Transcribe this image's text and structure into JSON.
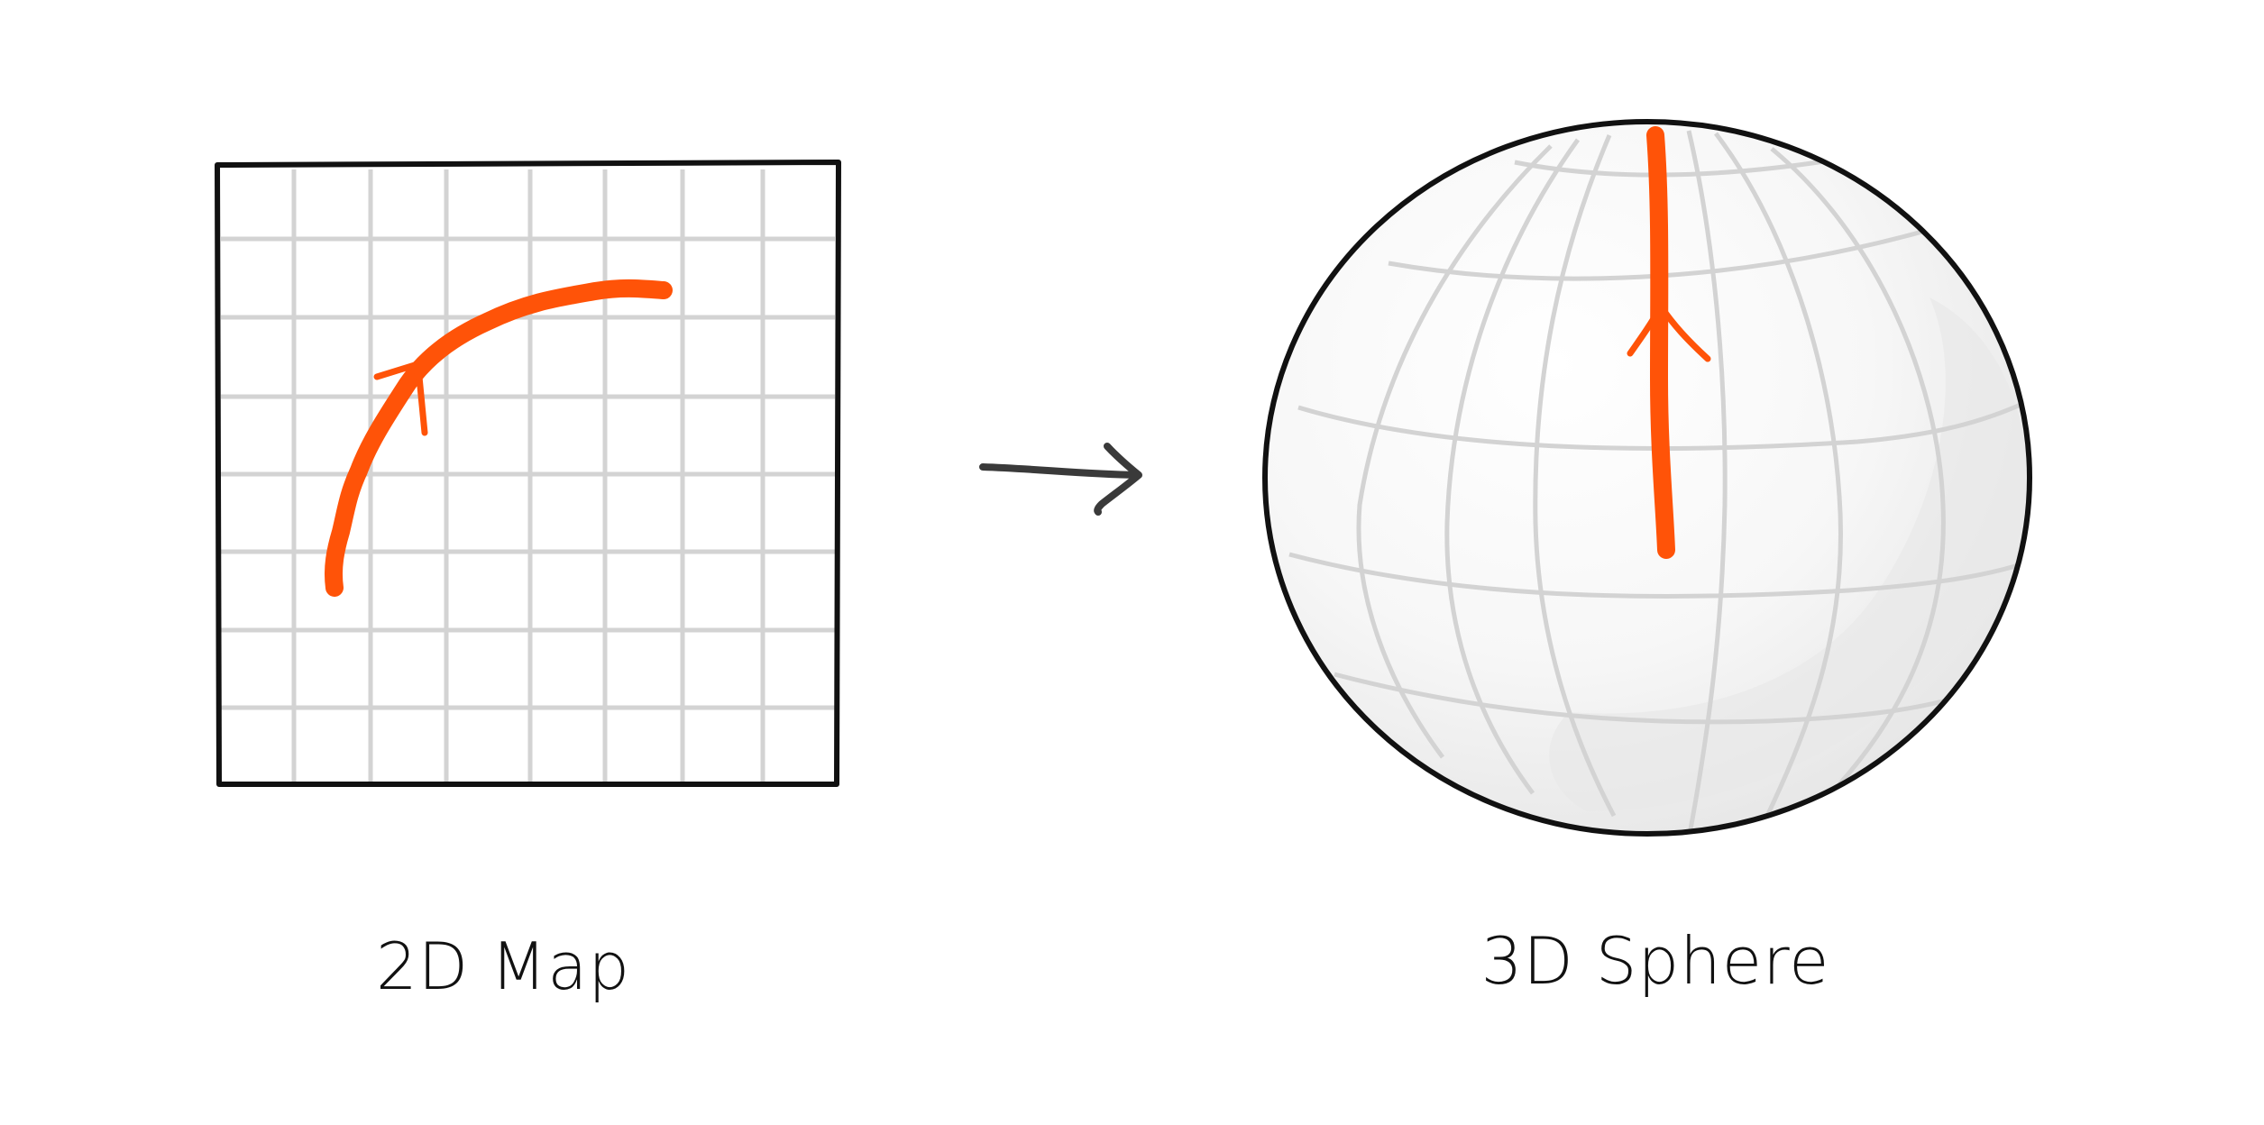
{
  "panels": {
    "map": {
      "caption": "2D Map"
    },
    "sphere": {
      "caption": "3D Sphere"
    }
  },
  "colors": {
    "background": "#ffffff",
    "outline": "#111111",
    "grid": "#d3d3d3",
    "path": "#ff5308",
    "arrow": "#3a3a3a",
    "sphere_fill": "#f6f6f6",
    "sphere_shade": "#e6e6e6"
  }
}
